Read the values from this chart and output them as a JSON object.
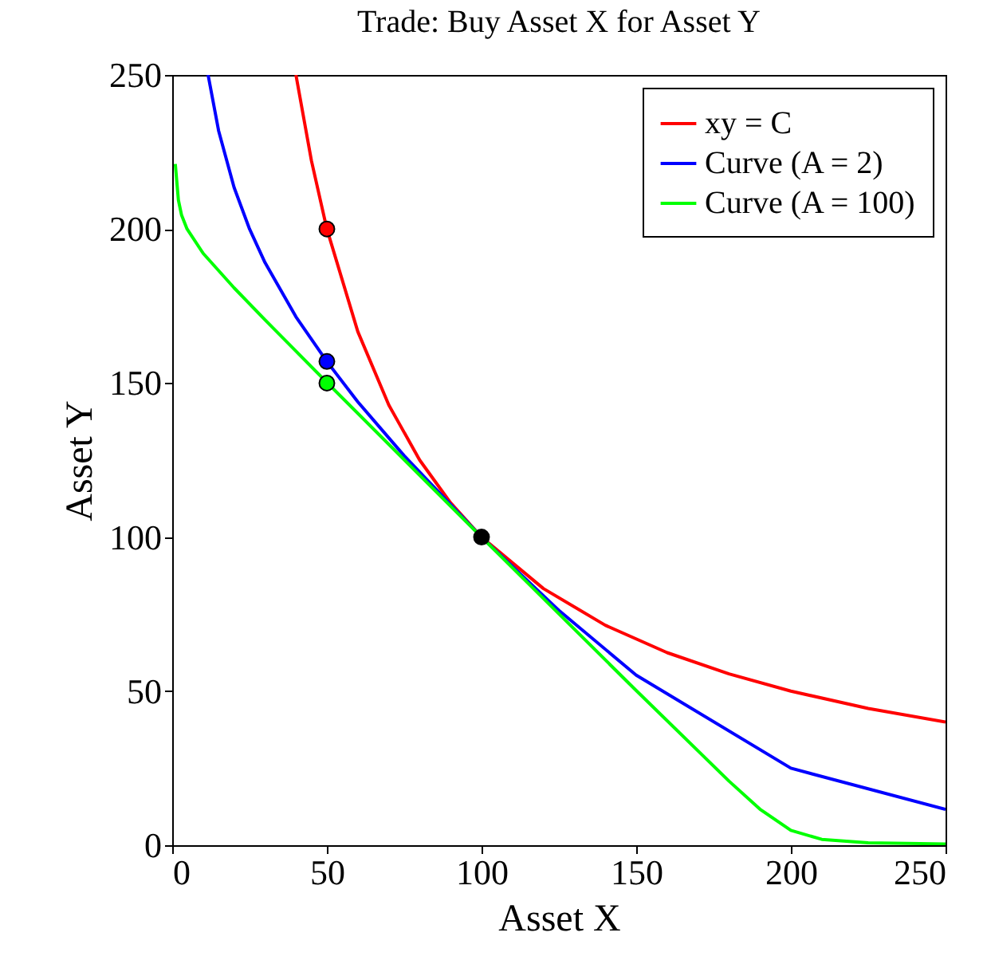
{
  "chart_data": {
    "type": "line",
    "title": "Trade:  Buy Asset X for Asset Y",
    "xlabel": "Asset X",
    "ylabel": "Asset Y",
    "xlim": [
      0,
      250
    ],
    "ylim": [
      0,
      250
    ],
    "xticks": [
      0,
      50,
      100,
      150,
      200,
      250
    ],
    "yticks": [
      0,
      50,
      100,
      150,
      200,
      250
    ],
    "legend": "top right",
    "marker": "none",
    "line_style": "solid",
    "series": [
      {
        "name": "xy = C",
        "color": "#ff0000",
        "x": [
          40,
          45,
          50,
          60,
          70,
          80,
          90,
          100,
          120,
          140,
          160,
          180,
          200,
          225,
          250
        ],
        "values": [
          250,
          222.2,
          200,
          166.7,
          142.9,
          125,
          111.1,
          100,
          83.3,
          71.4,
          62.5,
          55.6,
          50,
          44.4,
          40
        ]
      },
      {
        "name": "Curve (A = 2)",
        "color": "#0000ff",
        "x": [
          11.6,
          15,
          20,
          25,
          30,
          40,
          50,
          60,
          75,
          100,
          125,
          150,
          200,
          250
        ],
        "values": [
          250,
          231.9,
          213.5,
          200,
          189.1,
          171.5,
          157,
          143.9,
          126.4,
          100,
          76.2,
          55.2,
          25,
          11.6
        ]
      },
      {
        "name": "Curve (A = 100)",
        "color": "#00ff00",
        "x": [
          1,
          2,
          3,
          4.8,
          10,
          20,
          30,
          50,
          100,
          150,
          180,
          190,
          200,
          210,
          225,
          250
        ],
        "values": [
          221.1,
          209.4,
          204.6,
          200,
          192.1,
          180.9,
          170.5,
          150.2,
          100,
          50.2,
          20.8,
          11.7,
          4.8,
          1.9,
          0.8,
          0.4
        ]
      },
      {
        "type": "scatter",
        "marker": "circle",
        "color": "#ff0000",
        "x": [
          50
        ],
        "values": [
          200
        ]
      },
      {
        "type": "scatter",
        "marker": "circle",
        "color": "#0000ff",
        "x": [
          50
        ],
        "values": [
          157
        ]
      },
      {
        "type": "scatter",
        "marker": "circle",
        "color": "#00ff00",
        "x": [
          50
        ],
        "values": [
          150
        ]
      },
      {
        "type": "scatter",
        "marker": "circle",
        "color": "#000000",
        "x": [
          100
        ],
        "values": [
          100
        ]
      }
    ]
  }
}
